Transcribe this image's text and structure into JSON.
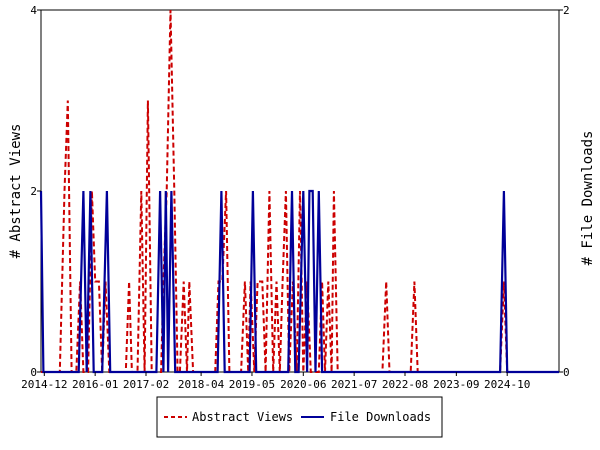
{
  "chart_data": {
    "type": "line",
    "y_left_label": "# Abstract Views",
    "y_right_label": "# File Downloads",
    "y_left_range": [
      0,
      4
    ],
    "y_right_range": [
      0,
      2
    ],
    "y_left_ticks": [
      "0",
      "2",
      "4"
    ],
    "y_right_ticks": [
      "0",
      "2"
    ],
    "x_range": [
      2014.85,
      2025.85
    ],
    "x_ticks": [
      {
        "label": "2014-12",
        "x": 2014.92
      },
      {
        "label": "2016-01",
        "x": 2016.0
      },
      {
        "label": "2017-02",
        "x": 2017.08
      },
      {
        "label": "2018-04",
        "x": 2018.25
      },
      {
        "label": "2019-05",
        "x": 2019.33
      },
      {
        "label": "2020-06",
        "x": 2020.42
      },
      {
        "label": "2021-07",
        "x": 2021.5
      },
      {
        "label": "2022-08",
        "x": 2022.58
      },
      {
        "label": "2023-09",
        "x": 2023.67
      },
      {
        "label": "2024-10",
        "x": 2024.75
      }
    ],
    "legend_position": "bottom-center",
    "series": [
      {
        "name": "Abstract Views",
        "axis": "left",
        "color": "#cc0000",
        "style": "dashed",
        "points": [
          [
            2014.85,
            0
          ],
          [
            2015.25,
            0
          ],
          [
            2015.35,
            2
          ],
          [
            2015.42,
            3
          ],
          [
            2015.5,
            0
          ],
          [
            2015.6,
            0
          ],
          [
            2015.68,
            1
          ],
          [
            2015.75,
            0
          ],
          [
            2015.85,
            0
          ],
          [
            2015.93,
            2
          ],
          [
            2016.0,
            1
          ],
          [
            2016.08,
            1
          ],
          [
            2016.15,
            0
          ],
          [
            2016.22,
            1
          ],
          [
            2016.3,
            0
          ],
          [
            2016.65,
            0
          ],
          [
            2016.72,
            1
          ],
          [
            2016.78,
            0
          ],
          [
            2016.9,
            0
          ],
          [
            2016.98,
            2
          ],
          [
            2017.05,
            0
          ],
          [
            2017.12,
            3
          ],
          [
            2017.2,
            0
          ],
          [
            2017.4,
            0
          ],
          [
            2017.45,
            1
          ],
          [
            2017.52,
            2
          ],
          [
            2017.6,
            4
          ],
          [
            2017.68,
            2
          ],
          [
            2017.75,
            0
          ],
          [
            2017.8,
            0
          ],
          [
            2017.88,
            1
          ],
          [
            2017.95,
            0
          ],
          [
            2018.0,
            1
          ],
          [
            2018.08,
            0
          ],
          [
            2018.55,
            0
          ],
          [
            2018.62,
            1
          ],
          [
            2018.7,
            1
          ],
          [
            2018.78,
            2
          ],
          [
            2018.85,
            0
          ],
          [
            2019.1,
            0
          ],
          [
            2019.18,
            1
          ],
          [
            2019.25,
            0
          ],
          [
            2019.3,
            1
          ],
          [
            2019.38,
            0
          ],
          [
            2019.45,
            1
          ],
          [
            2019.55,
            1
          ],
          [
            2019.62,
            0
          ],
          [
            2019.7,
            2
          ],
          [
            2019.78,
            0
          ],
          [
            2019.85,
            1
          ],
          [
            2019.92,
            0
          ],
          [
            2019.98,
            1
          ],
          [
            2020.05,
            2
          ],
          [
            2020.12,
            0
          ],
          [
            2020.2,
            1
          ],
          [
            2020.28,
            0
          ],
          [
            2020.35,
            2
          ],
          [
            2020.42,
            0
          ],
          [
            2020.5,
            1
          ],
          [
            2020.58,
            0
          ],
          [
            2020.75,
            0
          ],
          [
            2020.82,
            1
          ],
          [
            2020.88,
            0
          ],
          [
            2020.95,
            1
          ],
          [
            2021.02,
            0
          ],
          [
            2021.07,
            2
          ],
          [
            2021.15,
            0
          ],
          [
            2022.1,
            0
          ],
          [
            2022.18,
            1
          ],
          [
            2022.25,
            0
          ],
          [
            2022.7,
            0
          ],
          [
            2022.78,
            1
          ],
          [
            2022.85,
            0
          ],
          [
            2024.6,
            0
          ],
          [
            2024.68,
            1
          ],
          [
            2024.75,
            0
          ],
          [
            2025.85,
            0
          ]
        ]
      },
      {
        "name": "File Downloads",
        "axis": "right",
        "color": "#000099",
        "style": "solid",
        "points": [
          [
            2014.85,
            1
          ],
          [
            2014.9,
            0
          ],
          [
            2015.65,
            0
          ],
          [
            2015.75,
            1
          ],
          [
            2015.82,
            0
          ],
          [
            2015.9,
            1
          ],
          [
            2015.97,
            0
          ],
          [
            2016.15,
            0
          ],
          [
            2016.25,
            1
          ],
          [
            2016.32,
            0
          ],
          [
            2017.3,
            0
          ],
          [
            2017.38,
            1
          ],
          [
            2017.45,
            0
          ],
          [
            2017.5,
            1
          ],
          [
            2017.55,
            0
          ],
          [
            2017.62,
            1
          ],
          [
            2017.7,
            0
          ],
          [
            2018.6,
            0
          ],
          [
            2018.68,
            1
          ],
          [
            2018.75,
            0
          ],
          [
            2019.28,
            0
          ],
          [
            2019.35,
            1
          ],
          [
            2019.42,
            0
          ],
          [
            2020.1,
            0
          ],
          [
            2020.18,
            1
          ],
          [
            2020.25,
            0
          ],
          [
            2020.32,
            0
          ],
          [
            2020.42,
            1
          ],
          [
            2020.5,
            0
          ],
          [
            2020.55,
            1
          ],
          [
            2020.62,
            1
          ],
          [
            2020.68,
            0
          ],
          [
            2020.75,
            1
          ],
          [
            2020.82,
            0
          ],
          [
            2024.6,
            0
          ],
          [
            2024.68,
            1
          ],
          [
            2024.75,
            0
          ],
          [
            2025.85,
            0
          ]
        ]
      }
    ]
  }
}
